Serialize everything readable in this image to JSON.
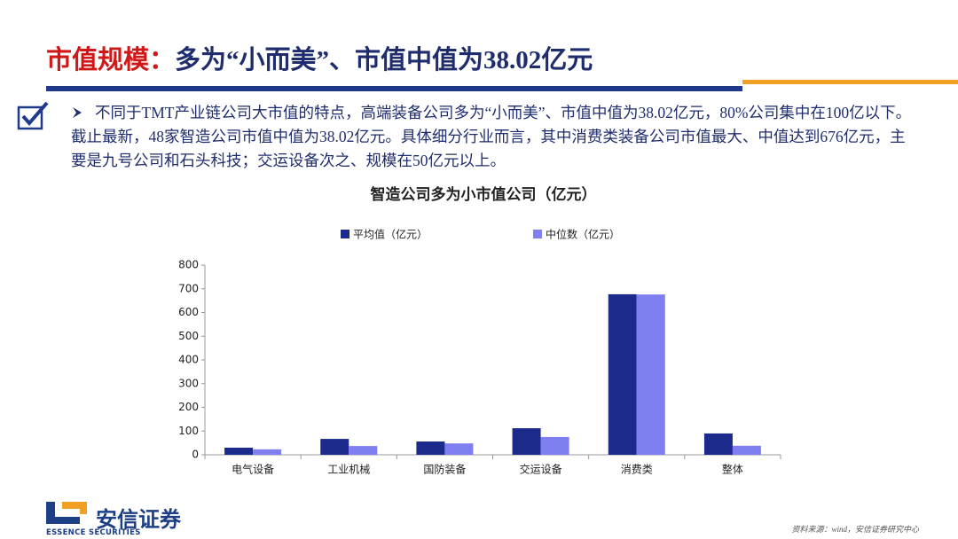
{
  "header": {
    "title_highlight": "市值规模：",
    "title_rest": "多为“小而美”、市值中值为38.02亿元"
  },
  "body": {
    "paragraph": "不同于TMT产业链公司大市值的特点，高端装备公司多为“小而美”、市值中值为38.02亿元，80%公司集中在100亿以下。截止最新，48家智造公司市值中值为38.02亿元。具体细分行业而言，其中消费类装备公司市值最大、中值达到676亿元，主要是九号公司和石头科技；交运设备次之、规模在50亿元以上。"
  },
  "chart_data": {
    "type": "bar",
    "title": "智造公司多为小市值公司（亿元）",
    "categories": [
      "电气设备",
      "工业机械",
      "国防装备",
      "交运设备",
      "消费类",
      "整体"
    ],
    "series": [
      {
        "name": "平均值（亿元）",
        "color": "#1c2a8c",
        "values": [
          30,
          67,
          56,
          112,
          677,
          90
        ]
      },
      {
        "name": "中位数（亿元）",
        "color": "#7f7ff2",
        "values": [
          23,
          37,
          48,
          75,
          676,
          38.02
        ]
      }
    ],
    "ylim": [
      0,
      800
    ],
    "yticks": [
      0,
      100,
      200,
      300,
      400,
      500,
      600,
      700,
      800
    ],
    "grid": false,
    "legend": "top"
  },
  "footer": {
    "logo_text": "安信证券",
    "logo_subtext": "ESSENCE SECURITIES",
    "source": "资料来源：wind，安信证券研究中心"
  }
}
